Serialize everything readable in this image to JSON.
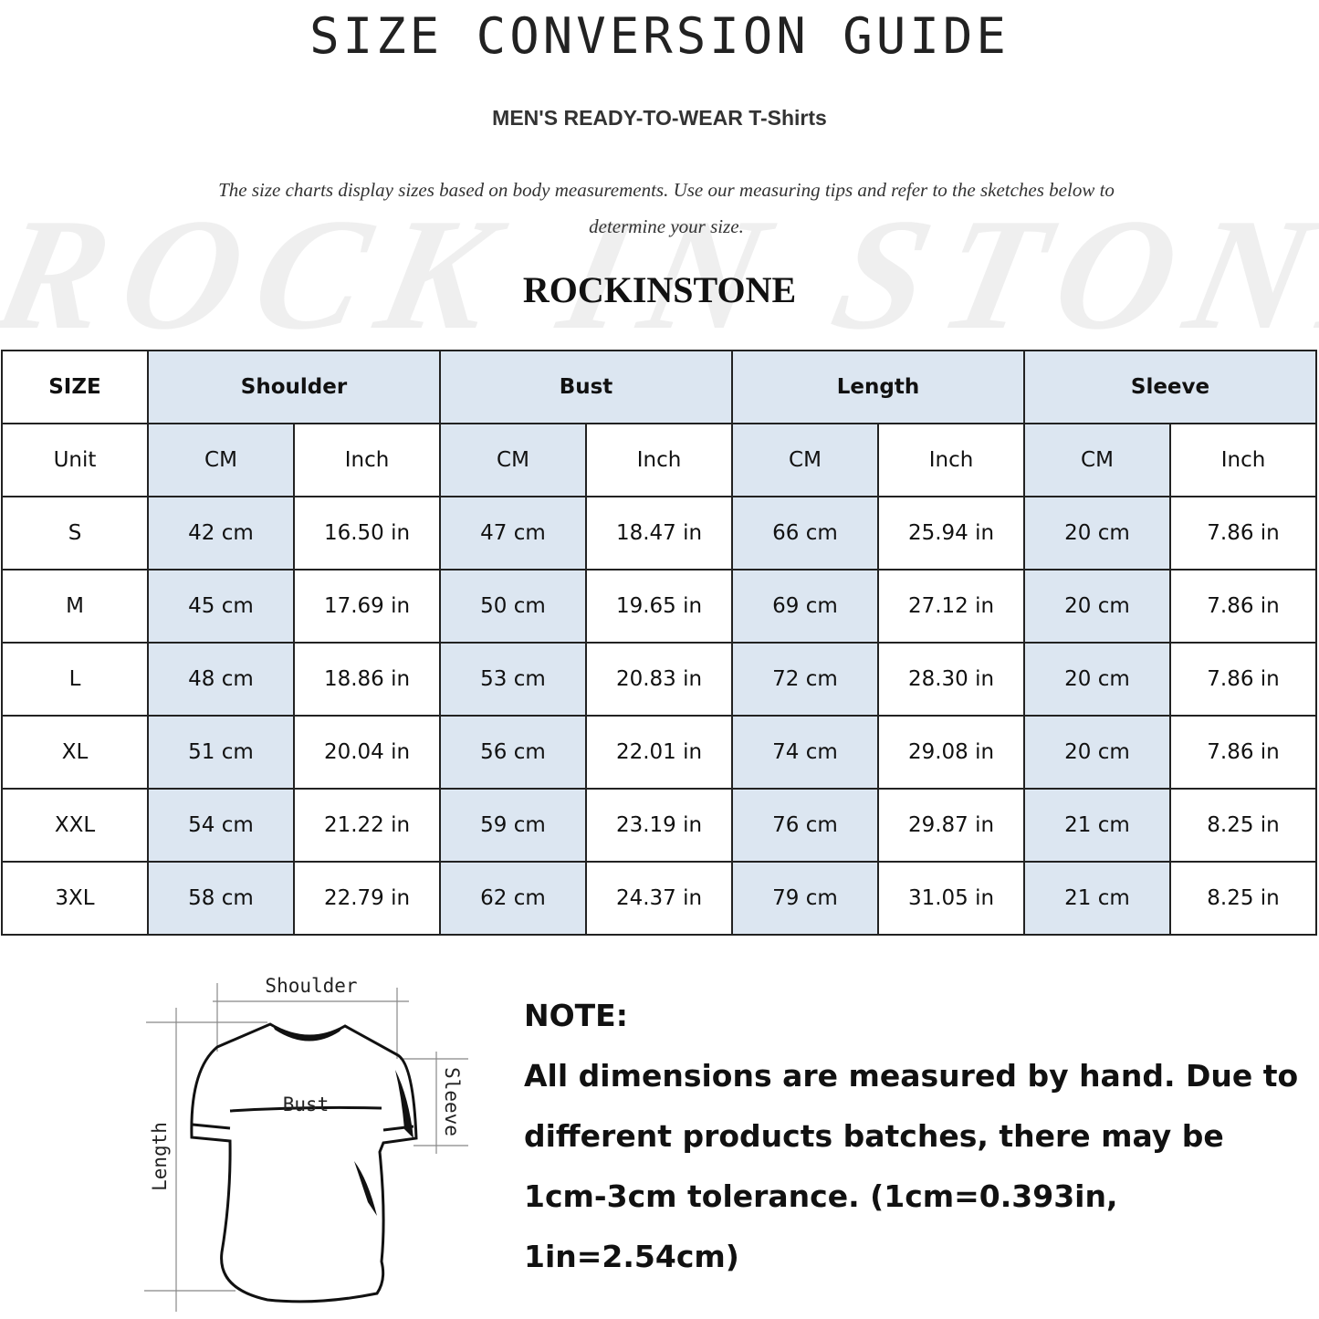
{
  "header": {
    "title": "SIZE CONVERSION GUIDE",
    "subtitle": "MEN'S READY-TO-WEAR T-Shirts",
    "description": "The size charts display sizes based on body measurements. Use our measuring tips and refer to the sketches below to determine your size.",
    "brand": "ROCKINSTONE",
    "watermark": "ROCK IN STONE"
  },
  "table": {
    "size_header": "SIZE",
    "unit_label": "Unit",
    "groups": [
      "Shoulder",
      "Bust",
      "Length",
      "Sleeve"
    ],
    "units": [
      "CM",
      "Inch"
    ],
    "rows": [
      {
        "size": "S",
        "values": [
          "42 cm",
          "16.50 in",
          "47 cm",
          "18.47 in",
          "66 cm",
          "25.94 in",
          "20 cm",
          "7.86 in"
        ]
      },
      {
        "size": "M",
        "values": [
          "45 cm",
          "17.69 in",
          "50 cm",
          "19.65 in",
          "69 cm",
          "27.12 in",
          "20 cm",
          "7.86 in"
        ]
      },
      {
        "size": "L",
        "values": [
          "48 cm",
          "18.86 in",
          "53 cm",
          "20.83 in",
          "72 cm",
          "28.30 in",
          "20 cm",
          "7.86 in"
        ]
      },
      {
        "size": "XL",
        "values": [
          "51 cm",
          "20.04 in",
          "56 cm",
          "22.01 in",
          "74 cm",
          "29.08 in",
          "20 cm",
          "7.86 in"
        ]
      },
      {
        "size": "XXL",
        "values": [
          "54 cm",
          "21.22 in",
          "59 cm",
          "23.19 in",
          "76 cm",
          "29.87 in",
          "21 cm",
          "8.25 in"
        ]
      },
      {
        "size": "3XL",
        "values": [
          "58 cm",
          "22.79 in",
          "62 cm",
          "24.37 in",
          "79 cm",
          "31.05 in",
          "21 cm",
          "8.25 in"
        ]
      }
    ],
    "highlight_color": "#dce6f1"
  },
  "diagram": {
    "labels": {
      "shoulder": "Shoulder",
      "bust": "Bust",
      "length": "Length",
      "sleeve": "Sleeve"
    }
  },
  "note": {
    "heading": "NOTE:",
    "text": "All dimensions are measured by hand. Due to different products batches, there may be 1cm-3cm tolerance. (1cm=0.393in, 1in=2.54cm)"
  }
}
